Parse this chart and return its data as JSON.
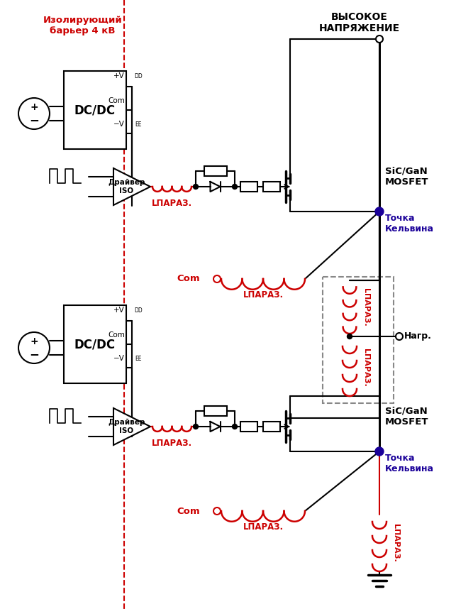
{
  "bg_color": "#ffffff",
  "barrier_label": "Изолирующий\nбарьер 4 кВ",
  "high_voltage_label": "ВЫСОКОЕ\nНАПРЯЖЕНИЕ",
  "mosfet_label": "SiC/GaN\nMOSFET",
  "kelvin_label": "Точка\nКельвина",
  "load_label": "Нагр.",
  "driver_label": "Драйвер\nISO",
  "dcdc_label": "DC/DC",
  "com_label": "Com",
  "lpara_label": "LПАРАЗ.",
  "red": "#cc0000",
  "blue": "#1a0099",
  "black": "#000000",
  "gray": "#888888"
}
